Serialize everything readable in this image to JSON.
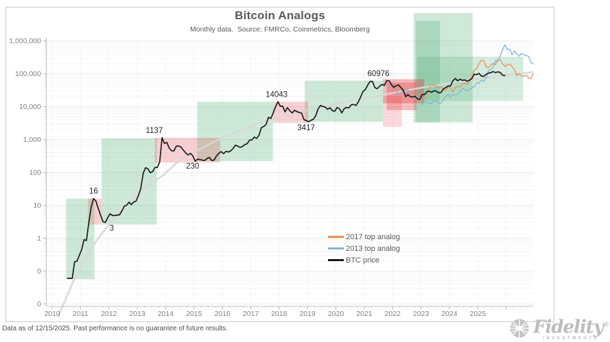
{
  "title": "Bitcoin Analogs",
  "subtitle": "Monthly data.  Source: FMRCo, Coinmetrics, Bloomberg",
  "footer": "Data as of 12/15/2025. Past performance is no guarantee of future results.",
  "brand": {
    "name": "Fidelity",
    "registered": "®",
    "sub": "INVESTMENTS"
  },
  "legend": [
    {
      "label": "2017 top analog",
      "color": "#e8915a"
    },
    {
      "label": "2013 top analog",
      "color": "#7fb4d6"
    },
    {
      "label": "BTC price",
      "color": "#1a1a1a"
    }
  ],
  "chart_data": {
    "type": "line",
    "title": "Bitcoin Analogs",
    "y_axis": {
      "scale": "log",
      "labels": [
        "1,000,000",
        "100,000",
        "10,000",
        "1,000",
        "100",
        "10",
        "1",
        "0",
        "0"
      ],
      "values": [
        1000000,
        100000,
        10000,
        1000,
        100,
        10,
        1,
        0.1,
        0.01
      ]
    },
    "x_axis": {
      "year_labels": [
        2010,
        2011,
        2012,
        2013,
        2014,
        2015,
        2016,
        2017,
        2018,
        2019,
        2020,
        2021,
        2022,
        2023,
        2024,
        2025
      ],
      "tick_year_min": 2010,
      "tick_year_max": 2026,
      "range": [
        2010,
        2027
      ]
    },
    "annotations": [
      {
        "text": "16",
        "year": 2011.46,
        "price": 16,
        "pos": "above"
      },
      {
        "text": "3",
        "year": 2012.1,
        "price": 3,
        "pos": "below"
      },
      {
        "text": "1137",
        "year": 2013.6,
        "price": 1137,
        "pos": "above"
      },
      {
        "text": "230",
        "year": 2014.95,
        "price": 230,
        "pos": "below"
      },
      {
        "text": "14043",
        "year": 2017.91,
        "price": 14043,
        "pos": "above"
      },
      {
        "text": "3417",
        "year": 2018.95,
        "price": 3417,
        "pos": "below"
      },
      {
        "text": "60976",
        "year": 2021.5,
        "price": 60976,
        "pos": "above"
      }
    ],
    "analog_boxes": {
      "green_color": "#46aa6e",
      "red_color": "#e13237",
      "green": [
        {
          "from": 2010.49,
          "to": 2011.49,
          "low": 0.056,
          "high": 16,
          "alpha": 0.26
        },
        {
          "from": 2011.74,
          "to": 2013.69,
          "low": 2.6,
          "high": 1100,
          "alpha": 0.26
        },
        {
          "from": 2015.11,
          "to": 2017.78,
          "low": 220,
          "high": 14043,
          "alpha": 0.26
        },
        {
          "from": 2018.9,
          "to": 2021.66,
          "low": 3417,
          "high": 60976,
          "alpha": 0.26
        },
        {
          "from": 2022.74,
          "to": 2024.82,
          "low": 3300,
          "high": 7000000,
          "alpha": 0.26
        },
        {
          "from": 2022.81,
          "to": 2023.67,
          "low": 3300,
          "high": 4000000,
          "alpha": 0.26
        },
        {
          "from": 2022.86,
          "to": 2026.6,
          "low": 14700,
          "high": 330000,
          "alpha": 0.22
        }
      ],
      "red": [
        {
          "from": 2011.27,
          "to": 2011.74,
          "low": 2.6,
          "high": 16,
          "alpha": 0.22
        },
        {
          "from": 2013.62,
          "to": 2015.92,
          "low": 200,
          "high": 1137,
          "alpha": 0.22
        },
        {
          "from": 2017.78,
          "to": 2019.02,
          "low": 3200,
          "high": 14043,
          "alpha": 0.22
        },
        {
          "from": 2021.66,
          "to": 2023.11,
          "low": 12600,
          "high": 67900,
          "alpha": 0.34
        },
        {
          "from": 2021.79,
          "to": 2022.84,
          "low": 7800,
          "high": 54000,
          "alpha": 0.3
        },
        {
          "from": 2021.66,
          "to": 2022.32,
          "low": 2400,
          "high": 20800,
          "alpha": 0.18
        }
      ]
    },
    "trend": {
      "name": "long-term trend",
      "color": "#d8d8d8",
      "points": [
        [
          2010.2,
          0.004
        ],
        [
          2010.46,
          0.013
        ],
        [
          2010.71,
          0.042
        ],
        [
          2011.08,
          0.18
        ],
        [
          2011.6,
          0.95
        ],
        [
          2012.3,
          5.4
        ],
        [
          2013.3,
          36
        ],
        [
          2013.9,
          80
        ],
        [
          2014.5,
          237
        ],
        [
          2015.2,
          500
        ],
        [
          2016.0,
          1160
        ],
        [
          2017.55,
          3820
        ],
        [
          2018.4,
          6000
        ],
        [
          2019.27,
          8690
        ],
        [
          2020.1,
          12500
        ],
        [
          2021.0,
          17800
        ],
        [
          2022.8,
          34800
        ],
        [
          2023.8,
          48000
        ],
        [
          2024.77,
          64900
        ],
        [
          2025.9,
          88000
        ],
        [
          2026.96,
          113000
        ]
      ]
    },
    "series": [
      {
        "name": "2017 top analog",
        "color": "#e8915a",
        "start_year": 2021,
        "start_month": 11,
        "monthly_prices": [
          60976,
          44300,
          44700,
          30100,
          40100,
          32500,
          27800,
          33600,
          30500,
          28800,
          27400,
          17400,
          16200,
          15000,
          16700,
          17800,
          23200,
          37200,
          47000,
          43800,
          41800,
          36100,
          39900,
          32900,
          31200,
          40600,
          37300,
          28000,
          37600,
          41100,
          39700,
          49200,
          50700,
          46800,
          59800,
          85200,
          125900,
          143800,
          196400,
          255300,
          250800,
          162100,
          152100,
          180700,
          204800,
          190100,
          266200,
          264800,
          200700,
          167100,
          187600,
          197700,
          163500,
          138100,
          86800,
          101200,
          87100,
          84400,
          89000,
          74500,
          71800,
          100400
        ]
      },
      {
        "name": "2013 top analog",
        "color": "#7fb4d6",
        "start_year": 2021,
        "start_month": 11,
        "monthly_prices": [
          60976,
          40400,
          43800,
          29500,
          24300,
          24000,
          33700,
          34100,
          31300,
          25500,
          20700,
          18100,
          20300,
          17200,
          11600,
          13600,
          13100,
          12700,
          12300,
          14100,
          15200,
          12300,
          12700,
          16800,
          20200,
          23100,
          19700,
          23400,
          22300,
          24000,
          28500,
          36100,
          33500,
          30800,
          32700,
          37500,
          40000,
          51600,
          52000,
          63300,
          57900,
          72400,
          123300,
          133000,
          154200,
          252200,
          233800,
          346900,
          531800,
          753100,
          547000,
          552400,
          371500,
          495800,
          402000,
          343200,
          414600,
          377000,
          355300,
          338800,
          215400,
          200700
        ]
      },
      {
        "name": "BTC price",
        "color": "#1a1a1a",
        "start_year": 2010,
        "start_month": 7,
        "monthly_prices": [
          0.06,
          0.06,
          0.06,
          0.19,
          0.2,
          0.3,
          0.45,
          0.9,
          0.85,
          3,
          8.7,
          16,
          13.5,
          8,
          5,
          3.2,
          3,
          4.2,
          5.5,
          4.9,
          4.9,
          5,
          5.1,
          6.7,
          9.4,
          10,
          12.4,
          10.5,
          12.5,
          13.4,
          20,
          33,
          93,
          139,
          128,
          97,
          106,
          141,
          141,
          211,
          1137,
          754,
          816,
          550,
          454,
          448,
          628,
          635,
          583,
          475,
          386,
          338,
          378,
          320,
          217,
          254,
          244,
          236,
          230,
          263,
          284,
          230,
          236,
          314,
          377,
          430,
          368,
          437,
          416,
          448,
          531,
          673,
          624,
          575,
          609,
          700,
          745,
          963,
          970,
          1180,
          1080,
          1350,
          2300,
          2480,
          2875,
          4703,
          4360,
          6468,
          9916,
          14043,
          10200,
          10300,
          6928,
          9245,
          7495,
          6400,
          7730,
          7030,
          6625,
          6318,
          4017,
          3742,
          3457,
          3854,
          4105,
          5350,
          8574,
          10817,
          10085,
          9630,
          8308,
          9199,
          7569,
          7193,
          9350,
          8599,
          6438,
          8658,
          9461,
          9137,
          11323,
          11680,
          10784,
          13781,
          19625,
          28996,
          33114,
          45240,
          58800,
          57750,
          37332,
          35041,
          41626,
          47166,
          43791,
          61300,
          60976,
          46219,
          38483,
          43200,
          45539,
          37650,
          31800,
          19985,
          23300,
          20050,
          19432,
          20490,
          17168,
          16547,
          23130,
          23147,
          28478,
          29268,
          27219,
          30477,
          29230,
          25932,
          26967,
          34667,
          37718,
          42265,
          42580,
          61198,
          71333,
          60636,
          67491,
          62678,
          64619,
          58978,
          63329,
          70215,
          96449,
          93429,
          102409,
          84373,
          82549,
          94208,
          104638,
          107135,
          115760,
          108236,
          114056,
          109000,
          90500,
          87000
        ]
      }
    ]
  }
}
